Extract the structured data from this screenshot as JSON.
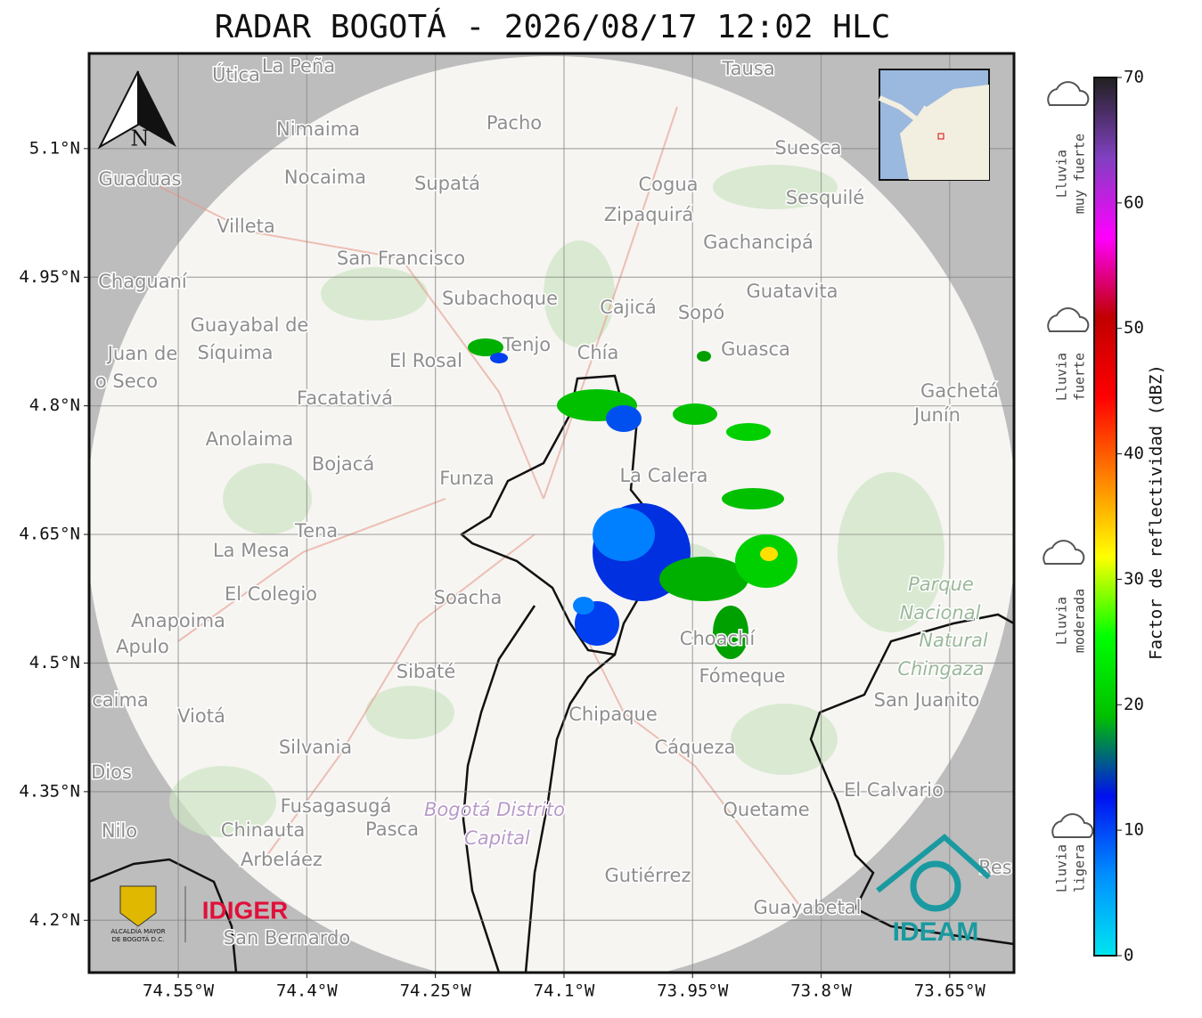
{
  "title": "RADAR BOGOTÁ - 2026/08/17 12:02 HLC",
  "map": {
    "xlim": [
      -74.654,
      -73.575
    ],
    "ylim": [
      4.139,
      5.211
    ],
    "xticks": [
      {
        "value": -74.55,
        "label": "74.55°W"
      },
      {
        "value": -74.4,
        "label": "74.4°W"
      },
      {
        "value": -74.25,
        "label": "74.25°W"
      },
      {
        "value": -74.1,
        "label": "74.1°W"
      },
      {
        "value": -73.95,
        "label": "73.95°W"
      },
      {
        "value": -73.8,
        "label": "73.8°W"
      },
      {
        "value": -73.65,
        "label": "73.65°W"
      }
    ],
    "yticks": [
      {
        "value": 5.1,
        "label": "5.1°N"
      },
      {
        "value": 4.95,
        "label": "4.95°N"
      },
      {
        "value": 4.8,
        "label": "4.8°N"
      },
      {
        "value": 4.65,
        "label": "4.65°N"
      },
      {
        "value": 4.5,
        "label": "4.5°N"
      },
      {
        "value": 4.35,
        "label": "4.35°N"
      },
      {
        "value": 4.2,
        "label": "4.2°N"
      }
    ],
    "grid": true,
    "north": "N",
    "places": [
      "Útica",
      "La Peña",
      "Tausa",
      "Pacho",
      "Nimaima",
      "Guaduas",
      "Nocaima",
      "Supatá",
      "Cogua",
      "Suesca",
      "Sesquilé",
      "Zipaquirá",
      "Villeta",
      "Gachancipá",
      "San Francisco",
      "Chaguaní",
      "Guatavita",
      "Subachoque",
      "Cajicá",
      "Sopó",
      "Guayabal de",
      "Síquima",
      "Juan de",
      "Tenjo",
      "Chía",
      "Guasca",
      "El Rosal",
      "o Seco",
      "Facatativá",
      "Gachetá",
      "Junín",
      "Anolaima",
      "Bojacá",
      "Funza",
      "La Calera",
      "Tena",
      "La Mesa",
      "El Colegio",
      "Soacha",
      "Parque",
      "Nacional",
      "Natural",
      "Chingaza",
      "Anapoima",
      "Apulo",
      "Choachí",
      "Sibaté",
      "Fómeque",
      "San Juanito",
      "caima",
      "Viotá",
      "Chipaque",
      "Silvania",
      "Cáqueza",
      "Dios",
      "El Calvario",
      "Fusagasugá",
      "Bogotá Distrito",
      "Capital",
      "Quetame",
      "Nilo",
      "Chinauta",
      "Pasca",
      "Arbeláez",
      "Gutiérrez",
      "Guayabetal",
      "San Bernardo",
      "Res"
    ],
    "logos": {
      "alcaldia": [
        "ALCALDÍA MAYOR",
        "DE BOGOTÁ D.C."
      ],
      "idiger": "IDIGER",
      "ideam": "IDEAM"
    }
  },
  "colorbar": {
    "label": "Factor de reflectividad (dBZ)",
    "range": [
      0,
      70
    ],
    "ticks": [
      0,
      10,
      20,
      30,
      40,
      50,
      60,
      70
    ],
    "colors": [
      "#00e5f0",
      "#0090ff",
      "#0010f0",
      "#00c000",
      "#00ff00",
      "#ffff00",
      "#ff8000",
      "#ff0000",
      "#c00000",
      "#ff00ff",
      "#8040c0",
      "#202020"
    ]
  },
  "rain_levels": [
    [
      "Lluvia",
      "muy fuerte"
    ],
    [
      "Lluvia",
      "fuerte"
    ],
    [
      "Lluvia",
      "moderada"
    ],
    [
      "Lluvia",
      "ligera"
    ]
  ]
}
